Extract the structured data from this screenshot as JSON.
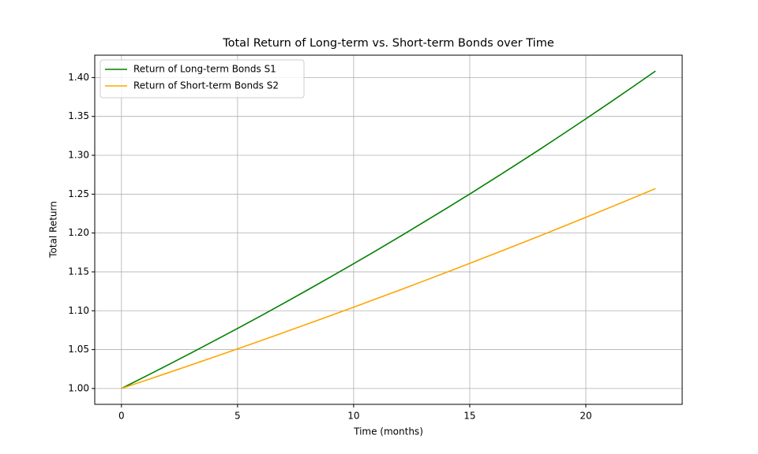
{
  "chart_data": {
    "type": "line",
    "title": "Total Return of Long-term vs. Short-term Bonds over Time",
    "xlabel": "Time (months)",
    "ylabel": "Total Return",
    "x": [
      0,
      1,
      2,
      3,
      4,
      5,
      6,
      7,
      8,
      9,
      10,
      11,
      12,
      13,
      14,
      15,
      16,
      17,
      18,
      19,
      20,
      21,
      22,
      23
    ],
    "series": [
      {
        "name": "Return of Long-term Bonds S1",
        "color": "#008000",
        "values": [
          1,
          1.015,
          1.0302,
          1.0457,
          1.0614,
          1.0773,
          1.0934,
          1.1098,
          1.1265,
          1.1434,
          1.1605,
          1.1779,
          1.1956,
          1.2136,
          1.2318,
          1.2502,
          1.269,
          1.288,
          1.3073,
          1.327,
          1.3469,
          1.3671,
          1.3876,
          1.4084
        ]
      },
      {
        "name": "Return of Short-term Bonds S2",
        "color": "#ffa500",
        "values": [
          1,
          1.01,
          1.0201,
          1.0303,
          1.0406,
          1.051,
          1.0615,
          1.0721,
          1.0829,
          1.0937,
          1.1046,
          1.1157,
          1.1268,
          1.1381,
          1.1495,
          1.161,
          1.1726,
          1.1843,
          1.1961,
          1.2081,
          1.2202,
          1.2324,
          1.2447,
          1.2572
        ]
      }
    ],
    "xlim": [
      -1.15,
      24.15
    ],
    "xticks": [
      0,
      5,
      10,
      15,
      20
    ],
    "ylim": [
      0.9796,
      1.4288
    ],
    "yticks": [
      {
        "value": 1,
        "label": "1.00"
      },
      {
        "value": 1.05,
        "label": "1.05"
      },
      {
        "value": 1.1,
        "label": "1.10"
      },
      {
        "value": 1.15,
        "label": "1.15"
      },
      {
        "value": 1.2,
        "label": "1.20"
      },
      {
        "value": 1.25,
        "label": "1.25"
      },
      {
        "value": 1.3,
        "label": "1.30"
      },
      {
        "value": 1.35,
        "label": "1.35"
      },
      {
        "value": 1.4,
        "label": "1.40"
      }
    ],
    "grid": true,
    "legend": "upper-left"
  }
}
